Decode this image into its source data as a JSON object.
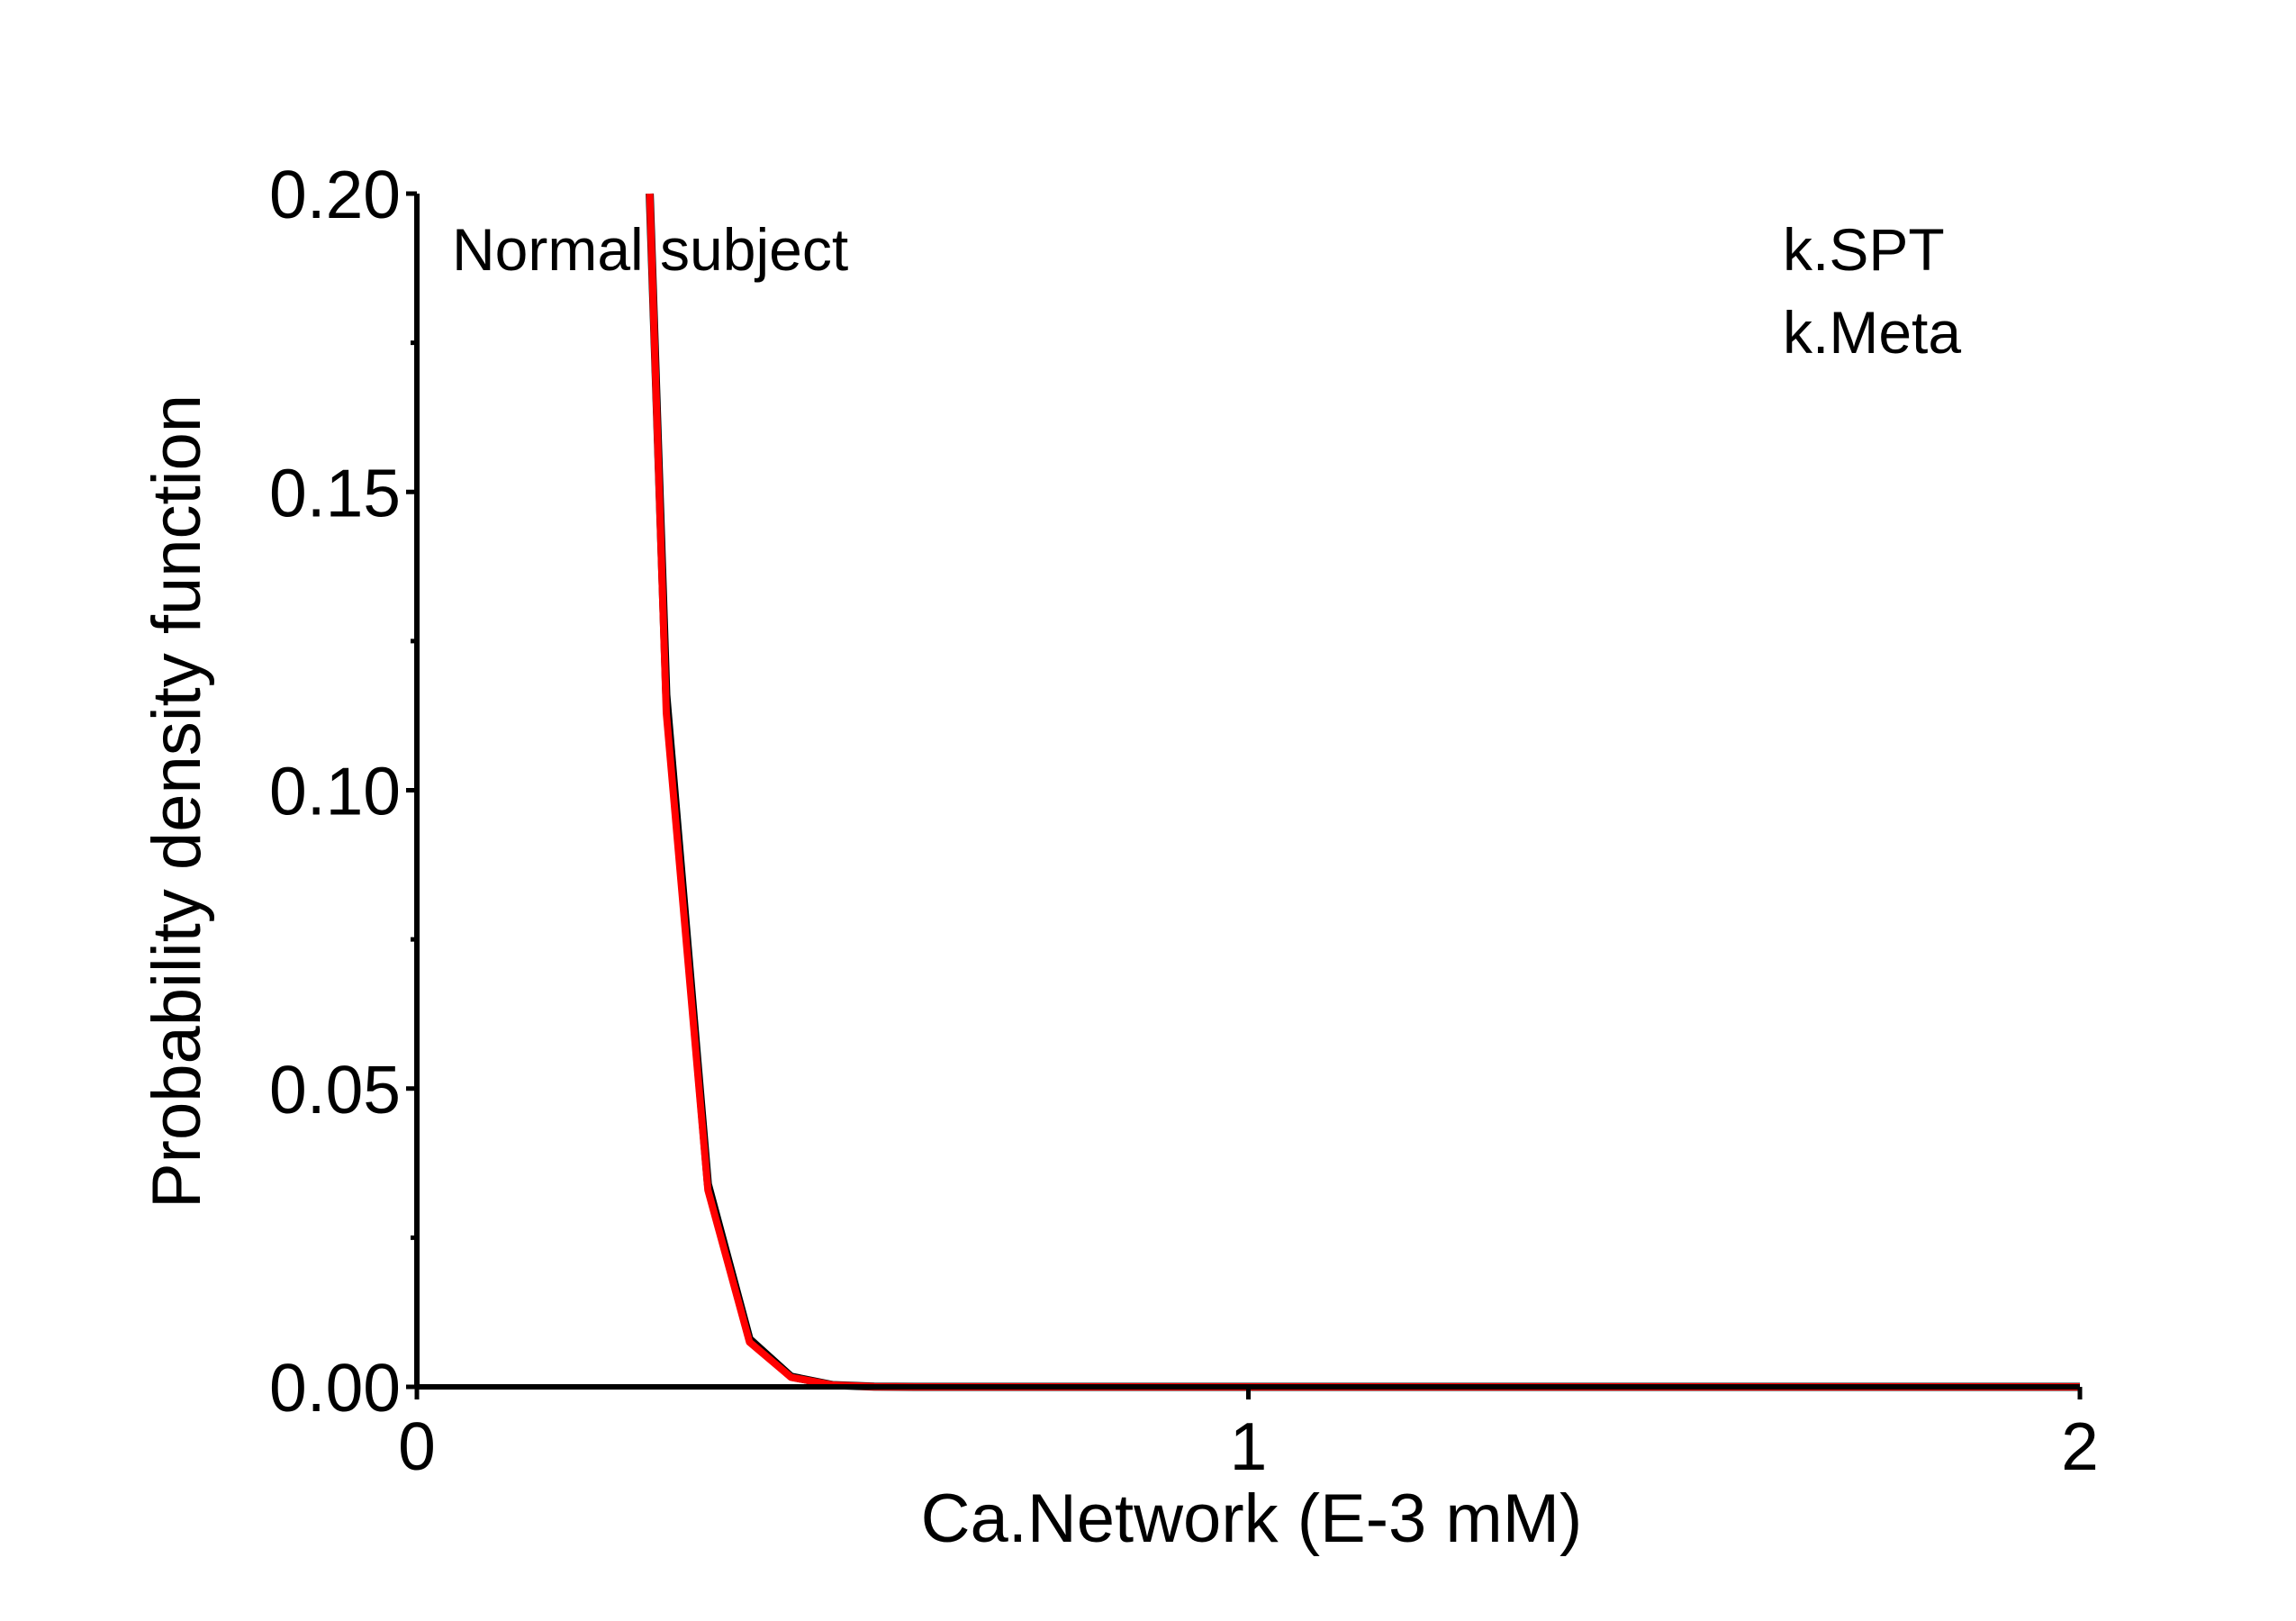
{
  "chart_data": {
    "type": "line",
    "title": "",
    "xlabel": "Ca.Network (E-3 mM)",
    "ylabel": "Probability density function",
    "xlim": [
      0,
      2
    ],
    "ylim": [
      0,
      0.2
    ],
    "x_ticks": [
      0,
      1,
      2
    ],
    "x_tick_labels": [
      "0",
      "1",
      "2"
    ],
    "y_ticks": [
      0,
      0.05,
      0.1,
      0.15,
      0.2
    ],
    "y_tick_labels": [
      "0.00",
      "0.05",
      "0.10",
      "0.15",
      "0.20"
    ],
    "grid": false,
    "annotations": [
      "Normal subject"
    ],
    "legend": {
      "placement": "top-right",
      "entries": [
        "k.SPT",
        "k.Meta"
      ]
    },
    "series": [
      {
        "color": "#000000",
        "x": [
          0.28,
          0.3,
          0.35,
          0.4,
          0.45,
          0.5,
          0.55,
          0.6,
          0.7,
          0.8,
          1.0,
          1.5,
          2.0
        ],
        "y": [
          0.2,
          0.116,
          0.034,
          0.008,
          0.0017,
          0.0003,
          5e-05,
          0.0,
          0.0,
          0.0,
          0.0,
          0.0,
          0.0
        ]
      },
      {
        "color": "#ff0000",
        "x": [
          0.28,
          0.3,
          0.35,
          0.4,
          0.45,
          0.5,
          0.55,
          0.6,
          0.7,
          0.8,
          1.0,
          1.5,
          2.0
        ],
        "y": [
          0.2,
          0.113,
          0.033,
          0.0075,
          0.0016,
          0.0003,
          5e-05,
          0.0,
          0.0,
          0.0,
          0.0,
          0.0,
          0.0
        ]
      }
    ]
  }
}
